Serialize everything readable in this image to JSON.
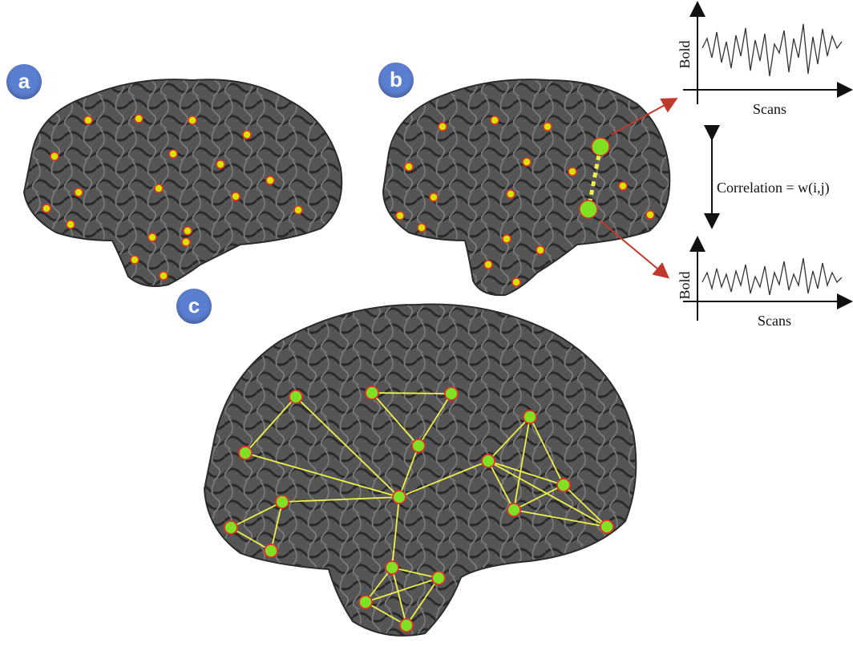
{
  "panels": {
    "a": {
      "badge": "a"
    },
    "b": {
      "badge": "b"
    },
    "c": {
      "badge": "c"
    }
  },
  "plots": {
    "top": {
      "ylabel": "Bold",
      "xlabel": "Scans"
    },
    "bottom": {
      "ylabel": "Bold",
      "xlabel": "Scans"
    }
  },
  "correlation_label": "Correlation = w(i,j)",
  "colors": {
    "badge": "#5b7fd0",
    "brain": "#4a4a4a",
    "node_yellow": "#d8e000",
    "node_green": "#7fe024",
    "node_outline": "#e0322a",
    "edge": "#f0f04a",
    "arrow_red": "#c0392b"
  }
}
